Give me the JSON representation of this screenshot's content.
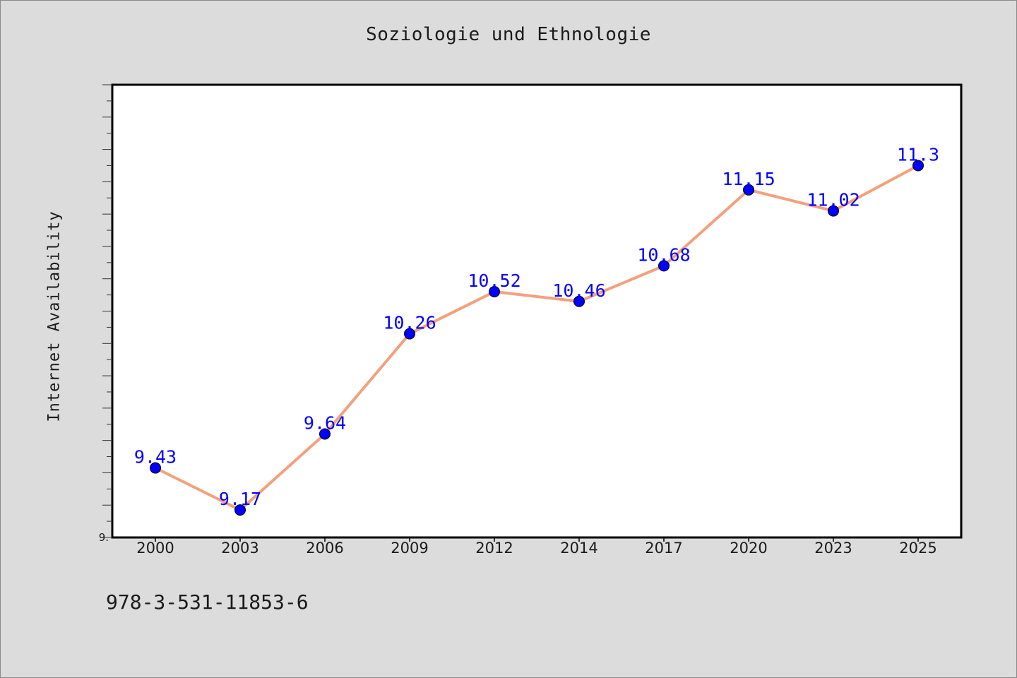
{
  "chart_data": {
    "type": "line",
    "title": "Soziologie und Ethnologie",
    "xlabel": "",
    "ylabel": "Internet Availability",
    "categories": [
      "2000",
      "2003",
      "2006",
      "2009",
      "2012",
      "2014",
      "2017",
      "2020",
      "2023",
      "2025"
    ],
    "series": [
      {
        "values": [
          9.43,
          9.17,
          9.64,
          10.26,
          10.52,
          10.46,
          10.68,
          11.15,
          11.02,
          11.3
        ],
        "labels": [
          "9.43",
          "9.17",
          "9.64",
          "10.26",
          "10.52",
          "10.46",
          "10.68",
          "11.15",
          "11.02",
          "11.3"
        ]
      }
    ],
    "y_tick_labels": [
      "9."
    ],
    "ylim": [
      9.0,
      11.8
    ],
    "grid": false,
    "legend": "none",
    "colors": {
      "line": "#f4a07c",
      "marker": "#0000ff",
      "data_label": "#0000ff",
      "plot_background": "#ffffff",
      "figure_background": "#dcdcdc"
    }
  },
  "footer": {
    "isbn": "978-3-531-11853-6"
  }
}
